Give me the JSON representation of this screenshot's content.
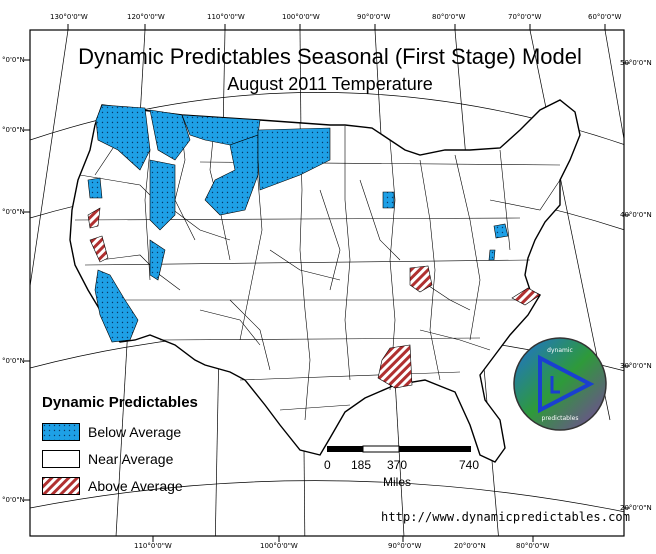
{
  "title": "Dynamic Predictables Seasonal (First Stage) Model",
  "subtitle": "August 2011 Temperature",
  "top_longitude_labels": [
    "130°0'0\"W",
    "120°0'0\"W",
    "110°0'0\"W",
    "100°0'0\"W",
    "90°0'0\"W",
    "80°0'0\"W",
    "70°0'0\"W",
    "60°0'0\"W"
  ],
  "bottom_longitude_labels": [
    "110°0'0\"W",
    "100°0'0\"W",
    "90°0'0\"W",
    "20°0'0\"N",
    "80°0'0\"W"
  ],
  "left_latitude_labels": [
    "°0'0\"N",
    "°0'0\"N",
    "°0'0\"N",
    "°0'0\"N",
    "°0'0\"N"
  ],
  "right_latitude_labels": [
    "50°0'0\"N",
    "40°0'0\"N",
    "30°0'0\"N",
    "20°0'0\"N"
  ],
  "legend": {
    "title": "Dynamic Predictables",
    "items": [
      {
        "label": "Below Average",
        "color": "#1ea0e6",
        "pattern": "dotted"
      },
      {
        "label": "Near Average",
        "color": "#ffffff",
        "pattern": "none"
      },
      {
        "label": "Above Average",
        "color": "#b03030",
        "pattern": "hatched"
      }
    ]
  },
  "scale_bar": {
    "ticks": [
      "0",
      "185",
      "370",
      "740"
    ],
    "units": "Miles"
  },
  "website": "http://www.dynamicpredictables.com",
  "logo": {
    "top_text": "dynamic",
    "bottom_text": "predictables",
    "colors": [
      "#1e6fd9",
      "#2e9a3a",
      "#7b3fa0"
    ]
  },
  "colors": {
    "below": "#1ea0e6",
    "above": "#b03030",
    "border": "#000000"
  }
}
